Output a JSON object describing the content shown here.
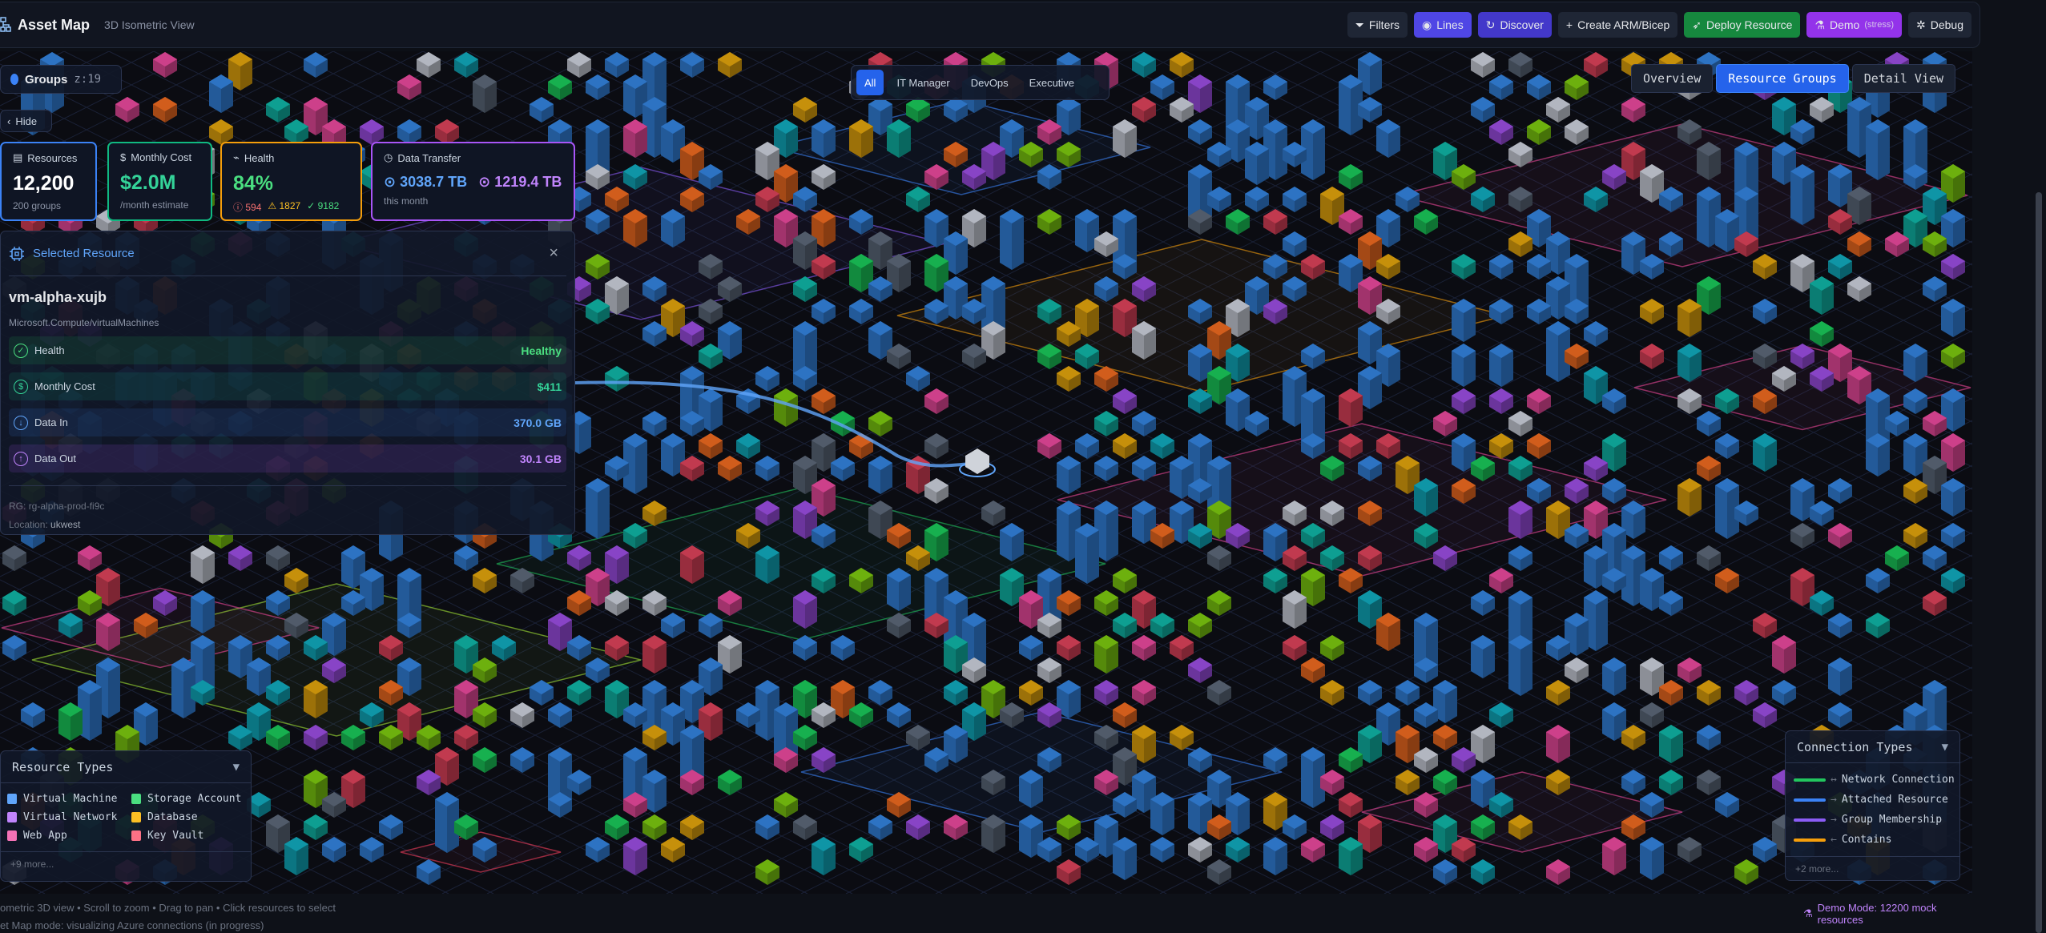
{
  "header": {
    "title": "Asset Map",
    "subtitle": "3D Isometric View",
    "buttons": [
      {
        "label": "Filters",
        "icon": "filter-icon",
        "color": "#1f2635"
      },
      {
        "label": "Lines",
        "icon": "eye-icon",
        "color": "#4f46e5"
      },
      {
        "label": "Discover",
        "icon": "refresh-icon",
        "color": "#4338ca"
      },
      {
        "label": "Create ARM/Bicep",
        "icon": "plus-icon",
        "color": "#1f2635"
      },
      {
        "label": "Deploy Resource",
        "icon": "rocket-icon",
        "color": "#16883e"
      },
      {
        "label": "Demo",
        "extra": "(stress)",
        "icon": "flask-icon",
        "color": "#9333ea"
      },
      {
        "label": "Debug",
        "icon": "bug-icon",
        "color": "#1f2635"
      }
    ]
  },
  "groups_pill": {
    "label": "Groups",
    "zoom": "z:19"
  },
  "hide_label": "Hide",
  "role_tabs": {
    "items": [
      "All",
      "IT Manager",
      "DevOps",
      "Executive"
    ],
    "active": "All"
  },
  "view_buttons": {
    "items": [
      "Overview",
      "Resource Groups",
      "Detail View"
    ],
    "active": "Resource Groups"
  },
  "stats": {
    "resources": {
      "label": "Resources",
      "value": "12,200",
      "sub": "200 groups",
      "color": "#3b82f6"
    },
    "cost": {
      "label": "Monthly Cost",
      "value": "$2.0M",
      "sub": "/month estimate",
      "color": "#10b981"
    },
    "health": {
      "label": "Health",
      "value": "84%",
      "critical": "594",
      "warning": "1827",
      "healthy": "9182",
      "color": "#f59e0b"
    },
    "transfer": {
      "label": "Data Transfer",
      "in": "3038.7 TB",
      "out": "1219.4 TB",
      "sub": "this month",
      "color": "#a855f7"
    }
  },
  "selected": {
    "title": "Selected Resource",
    "name": "vm-alpha-xujb",
    "type": "Microsoft.Compute/virtualMachines",
    "rows": [
      {
        "label": "Health",
        "value": "Healthy",
        "color": "#4ade80",
        "icon": "check-circle-icon"
      },
      {
        "label": "Monthly Cost",
        "value": "$411",
        "color": "#34d399",
        "icon": "dollar-icon"
      },
      {
        "label": "Data In",
        "value": "370.0 GB",
        "color": "#60a5fa",
        "icon": "arrow-down-circle-icon"
      },
      {
        "label": "Data Out",
        "value": "30.1 GB",
        "color": "#c084fc",
        "icon": "arrow-up-circle-icon"
      }
    ],
    "rg_label": "RG:",
    "rg_value": "rg-alpha-prod-fi9c",
    "location_label": "Location:",
    "location_value": "ukwest"
  },
  "resource_legend": {
    "title": "Resource Types",
    "items": [
      {
        "label": "Virtual Machine",
        "color": "#60a5fa"
      },
      {
        "label": "Storage Account",
        "color": "#4ade80"
      },
      {
        "label": "Virtual Network",
        "color": "#c084fc"
      },
      {
        "label": "Database",
        "color": "#fbbf24"
      },
      {
        "label": "Web App",
        "color": "#f472b6"
      },
      {
        "label": "Key Vault",
        "color": "#fb7185"
      }
    ],
    "more": "+9 more..."
  },
  "connection_legend": {
    "title": "Connection Types",
    "items": [
      {
        "arrow": "↔",
        "label": "Network Connection",
        "color": "#22c55e"
      },
      {
        "arrow": "→",
        "label": "Attached Resource",
        "color": "#3b82f6"
      },
      {
        "arrow": "→",
        "label": "Group Membership",
        "color": "#8b5cf6"
      },
      {
        "arrow": "←",
        "label": "Contains",
        "color": "#f59e0b"
      }
    ],
    "more": "+2 more..."
  },
  "footer": {
    "hint": "ometric 3D view • Scroll to zoom • Drag to pan • Click resources to select",
    "hint2": "et Map mode: visualizing Azure connections (in progress)",
    "demo_mode": "Demo Mode: 12200 mock resources"
  }
}
